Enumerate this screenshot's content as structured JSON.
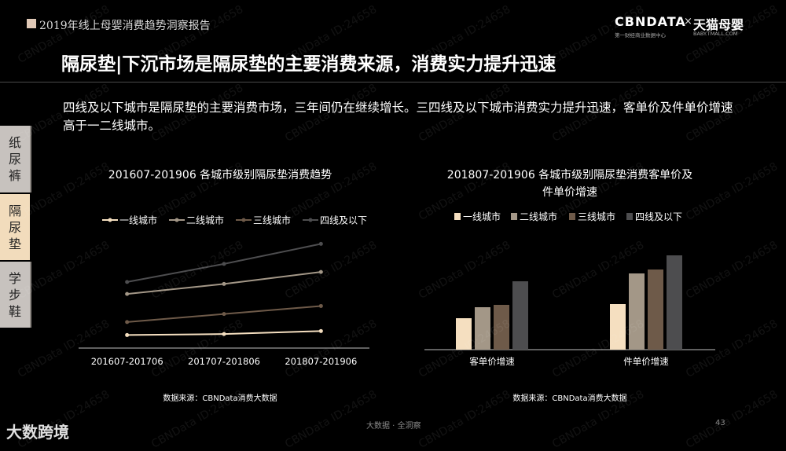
{
  "header": {
    "report_title": "2019年线上母婴消费趋势洞察报告",
    "brand_left": "CBNDATA",
    "brand_x": "×",
    "brand_right": "天猫母婴",
    "brand_left_sub": "第一财经商业数据中心",
    "brand_right_sub": "BABY.TMALL.COM"
  },
  "headline": "隔尿垫|下沉市场是隔尿垫的主要消费来源，消费实力提升迅速",
  "description": "四线及以下城市是隔尿垫的主要消费市场，三年间仍在继续增长。三四线及以下城市消费实力提升迅速，客单价及件单价增速高于一二线城市。",
  "side_tabs": [
    {
      "label": "纸尿裤"
    },
    {
      "label": "隔尿垫"
    },
    {
      "label": "学步鞋"
    }
  ],
  "watermark": "CBNData ID:24658",
  "colors": {
    "tier1": "#f5dfc0",
    "tier2": "#a39787",
    "tier3": "#6e5a49",
    "tier4": "#4d4d4f"
  },
  "chart_data": [
    {
      "type": "line",
      "title": "201607-201906 各城市级别隔尿垫消费趋势",
      "categories": [
        "201607-201706",
        "201707-201806",
        "201807-201906"
      ],
      "series": [
        {
          "name": "一线城市",
          "values": [
            3.0,
            4.0,
            7.0
          ]
        },
        {
          "name": "二线城市",
          "values": [
            44.0,
            54.0,
            66.0
          ]
        },
        {
          "name": "三线城市",
          "values": [
            16.0,
            24.0,
            32.0
          ]
        },
        {
          "name": "四线及以下",
          "values": [
            56.0,
            74.0,
            94.0
          ]
        }
      ],
      "ylim": [
        -10,
        110
      ],
      "grid": false,
      "legend": "top",
      "source": "数据来源：CBNData消费大数据"
    },
    {
      "type": "bar",
      "title": "201807-201906 各城市级别隔尿垫消费客单价及件单价增速",
      "categories": [
        "客单价增速",
        "件单价增速"
      ],
      "series": [
        {
          "name": "一线城市",
          "values": [
            40,
            58
          ]
        },
        {
          "name": "二线城市",
          "values": [
            54,
            97
          ]
        },
        {
          "name": "三线城市",
          "values": [
            57,
            102
          ]
        },
        {
          "name": "四线及以下",
          "values": [
            87,
            120
          ]
        }
      ],
      "ylim": [
        0,
        130
      ],
      "grid": false,
      "legend": "top",
      "source": "数据来源：CBNData消费大数据"
    }
  ],
  "footer": {
    "logo": "大数跨境",
    "middle": "大数据 · 全洞察",
    "page": "43"
  }
}
